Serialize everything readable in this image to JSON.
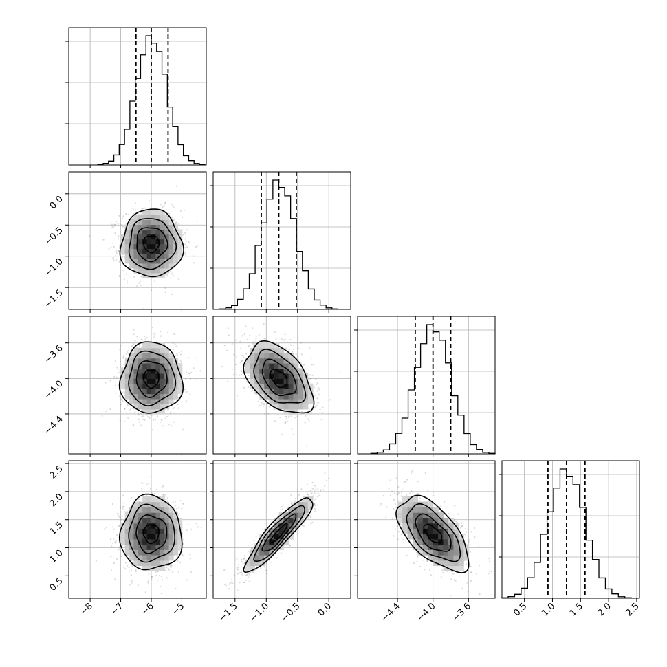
{
  "chart_data": {
    "type": "corner",
    "grid": true,
    "n_params": 4,
    "params": [
      {
        "range": [
          -8.7,
          -4.2
        ],
        "ticks": [
          -8,
          -7,
          -6,
          -5
        ],
        "tick_labels": [
          "−8",
          "−7",
          "−6",
          "−5"
        ],
        "center": -6.0,
        "sigma": 0.5,
        "quantiles": [
          -6.5,
          -6.0,
          -5.45
        ]
      },
      {
        "range": [
          -1.85,
          0.35
        ],
        "ticks": [
          -1.5,
          -1.0,
          -0.5,
          0.0
        ],
        "tick_labels": [
          "−1.5",
          "−1.0",
          "−0.5",
          "0.0"
        ],
        "center": -0.8,
        "sigma": 0.27,
        "quantiles": [
          -1.08,
          -0.8,
          -0.52
        ]
      },
      {
        "range": [
          -4.85,
          -3.3
        ],
        "ticks": [
          -4.4,
          -4.0,
          -3.6
        ],
        "tick_labels": [
          "−4.4",
          "−4.0",
          "−3.6"
        ],
        "center": -4.0,
        "sigma": 0.2,
        "quantiles": [
          -4.2,
          -4.0,
          -3.8
        ]
      },
      {
        "range": [
          0.1,
          2.55
        ],
        "ticks": [
          0.5,
          1.0,
          1.5,
          2.0,
          2.5
        ],
        "tick_labels": [
          "0.5",
          "1.0",
          "1.5",
          "2.0",
          "2.5"
        ],
        "center": 1.25,
        "sigma": 0.33,
        "quantiles": [
          0.92,
          1.25,
          1.58
        ]
      }
    ],
    "correlations": [
      {
        "pair": [
          0,
          1
        ],
        "rho": 0.0
      },
      {
        "pair": [
          0,
          2
        ],
        "rho": 0.0
      },
      {
        "pair": [
          1,
          2
        ],
        "rho": -0.45
      },
      {
        "pair": [
          0,
          3
        ],
        "rho": 0.0
      },
      {
        "pair": [
          1,
          3
        ],
        "rho": 0.9
      },
      {
        "pair": [
          2,
          3
        ],
        "rho": -0.6
      }
    ],
    "contour_levels_sigma": [
      0.5,
      1.0,
      1.5,
      2.0
    ],
    "histogram_bins": 20,
    "histogram_peak_fraction": 0.94
  }
}
